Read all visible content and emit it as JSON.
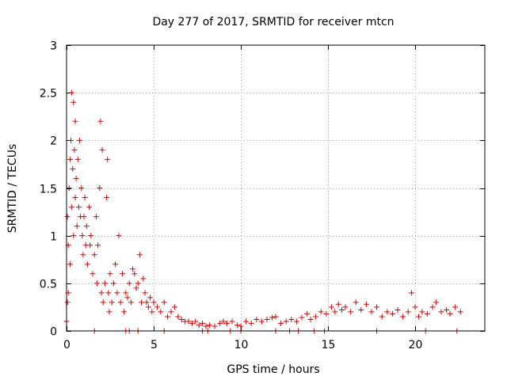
{
  "chart_data": {
    "type": "scatter",
    "title": "Day 277 of 2017, SRMTID for receiver mtcn",
    "xlabel": "GPS time / hours",
    "ylabel": "SRMTID / TECUs",
    "xlim": [
      0,
      24
    ],
    "ylim": [
      0,
      3
    ],
    "xticks": [
      0,
      5,
      10,
      15,
      20
    ],
    "yticks": [
      0,
      0.5,
      1,
      1.5,
      2,
      2.5,
      3
    ],
    "xtick_labels": [
      "0",
      "5",
      "10",
      "15",
      "20"
    ],
    "ytick_labels": [
      "0",
      "0.5",
      "1",
      "1.5",
      "2",
      "2.5",
      "3"
    ],
    "grid": true,
    "marker": "plus",
    "color": "#e00000",
    "series": [
      {
        "name": "SRMTID",
        "points": [
          [
            0.0,
            0.1
          ],
          [
            0.05,
            0.3
          ],
          [
            0.05,
            1.2
          ],
          [
            0.1,
            0.4
          ],
          [
            0.1,
            0.9
          ],
          [
            0.15,
            1.5
          ],
          [
            0.2,
            1.8
          ],
          [
            0.2,
            0.7
          ],
          [
            0.25,
            2.0
          ],
          [
            0.3,
            2.5
          ],
          [
            0.3,
            1.3
          ],
          [
            0.35,
            1.7
          ],
          [
            0.4,
            2.4
          ],
          [
            0.4,
            1.0
          ],
          [
            0.45,
            1.9
          ],
          [
            0.5,
            2.2
          ],
          [
            0.5,
            1.4
          ],
          [
            0.55,
            1.6
          ],
          [
            0.6,
            1.1
          ],
          [
            0.65,
            1.8
          ],
          [
            0.7,
            1.3
          ],
          [
            0.75,
            2.0
          ],
          [
            0.8,
            1.2
          ],
          [
            0.85,
            1.5
          ],
          [
            0.9,
            1.0
          ],
          [
            0.95,
            0.8
          ],
          [
            1.0,
            1.2
          ],
          [
            1.05,
            1.4
          ],
          [
            1.1,
            0.9
          ],
          [
            1.15,
            1.1
          ],
          [
            1.2,
            0.7
          ],
          [
            1.3,
            1.3
          ],
          [
            1.35,
            0.9
          ],
          [
            1.4,
            1.0
          ],
          [
            1.5,
            0.6
          ],
          [
            1.6,
            0.8
          ],
          [
            1.7,
            1.2
          ],
          [
            1.75,
            0.5
          ],
          [
            1.8,
            0.9
          ],
          [
            1.9,
            1.5
          ],
          [
            1.95,
            2.2
          ],
          [
            2.0,
            0.4
          ],
          [
            2.05,
            1.9
          ],
          [
            2.1,
            0.3
          ],
          [
            2.2,
            0.5
          ],
          [
            2.3,
            1.4
          ],
          [
            2.35,
            1.8
          ],
          [
            2.4,
            0.4
          ],
          [
            2.45,
            0.2
          ],
          [
            2.5,
            0.6
          ],
          [
            2.6,
            0.3
          ],
          [
            2.7,
            0.5
          ],
          [
            2.8,
            0.7
          ],
          [
            2.9,
            0.4
          ],
          [
            3.0,
            1.0
          ],
          [
            3.1,
            0.3
          ],
          [
            3.2,
            0.6
          ],
          [
            3.3,
            0.2
          ],
          [
            3.4,
            0.4
          ],
          [
            3.5,
            0.35
          ],
          [
            3.6,
            0.5
          ],
          [
            3.7,
            0.3
          ],
          [
            3.8,
            0.65
          ],
          [
            3.9,
            0.6
          ],
          [
            4.0,
            0.45
          ],
          [
            4.1,
            0.5
          ],
          [
            4.2,
            0.8
          ],
          [
            4.3,
            0.3
          ],
          [
            4.4,
            0.55
          ],
          [
            4.5,
            0.4
          ],
          [
            4.6,
            0.3
          ],
          [
            4.7,
            0.25
          ],
          [
            4.8,
            0.35
          ],
          [
            4.9,
            0.2
          ],
          [
            5.0,
            0.3
          ],
          [
            5.2,
            0.25
          ],
          [
            5.4,
            0.2
          ],
          [
            5.6,
            0.3
          ],
          [
            5.8,
            0.15
          ],
          [
            6.0,
            0.2
          ],
          [
            6.2,
            0.25
          ],
          [
            6.4,
            0.15
          ],
          [
            6.6,
            0.12
          ],
          [
            6.8,
            0.1
          ],
          [
            7.0,
            0.1
          ],
          [
            7.2,
            0.08
          ],
          [
            7.4,
            0.1
          ],
          [
            7.6,
            0.06
          ],
          [
            7.8,
            0.08
          ],
          [
            8.0,
            0.05
          ],
          [
            8.2,
            0.06
          ],
          [
            8.5,
            0.05
          ],
          [
            8.8,
            0.08
          ],
          [
            9.0,
            0.1
          ],
          [
            9.2,
            0.08
          ],
          [
            9.5,
            0.1
          ],
          [
            9.8,
            0.06
          ],
          [
            10.0,
            0.05
          ],
          [
            10.3,
            0.1
          ],
          [
            10.6,
            0.08
          ],
          [
            10.9,
            0.12
          ],
          [
            11.2,
            0.1
          ],
          [
            11.5,
            0.12
          ],
          [
            11.8,
            0.14
          ],
          [
            12.0,
            0.15
          ],
          [
            12.3,
            0.08
          ],
          [
            12.6,
            0.1
          ],
          [
            12.9,
            0.12
          ],
          [
            13.2,
            0.1
          ],
          [
            13.5,
            0.14
          ],
          [
            13.8,
            0.18
          ],
          [
            14.0,
            0.12
          ],
          [
            14.3,
            0.15
          ],
          [
            14.6,
            0.2
          ],
          [
            14.9,
            0.18
          ],
          [
            15.2,
            0.25
          ],
          [
            15.4,
            0.2
          ],
          [
            15.6,
            0.28
          ],
          [
            15.8,
            0.22
          ],
          [
            16.0,
            0.25
          ],
          [
            16.3,
            0.2
          ],
          [
            16.6,
            0.3
          ],
          [
            16.9,
            0.22
          ],
          [
            17.2,
            0.28
          ],
          [
            17.5,
            0.2
          ],
          [
            17.8,
            0.25
          ],
          [
            18.1,
            0.15
          ],
          [
            18.4,
            0.2
          ],
          [
            18.7,
            0.18
          ],
          [
            19.0,
            0.22
          ],
          [
            19.3,
            0.15
          ],
          [
            19.6,
            0.2
          ],
          [
            19.8,
            0.4
          ],
          [
            20.0,
            0.25
          ],
          [
            20.2,
            0.15
          ],
          [
            20.4,
            0.2
          ],
          [
            20.7,
            0.18
          ],
          [
            21.0,
            0.25
          ],
          [
            21.2,
            0.3
          ],
          [
            21.5,
            0.2
          ],
          [
            21.8,
            0.22
          ],
          [
            22.0,
            0.18
          ],
          [
            22.3,
            0.25
          ],
          [
            22.6,
            0.2
          ],
          [
            1.6,
            0.0
          ],
          [
            3.4,
            0.0
          ],
          [
            3.6,
            0.0
          ],
          [
            4.1,
            0.0
          ],
          [
            5.6,
            0.0
          ],
          [
            7.8,
            0.0
          ],
          [
            8.1,
            0.0
          ],
          [
            9.4,
            0.0
          ],
          [
            10.0,
            0.0
          ],
          [
            12.0,
            0.0
          ],
          [
            12.8,
            0.0
          ],
          [
            13.3,
            0.0
          ],
          [
            14.2,
            0.0
          ],
          [
            14.8,
            0.0
          ],
          [
            17.8,
            0.0
          ],
          [
            20.6,
            0.0
          ],
          [
            22.4,
            0.0
          ]
        ]
      }
    ]
  }
}
